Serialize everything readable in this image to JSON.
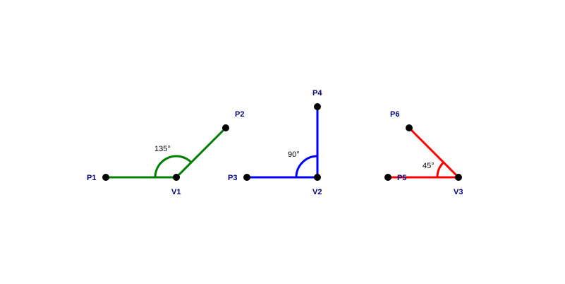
{
  "figures": [
    {
      "id": "fig1",
      "color": "#008000",
      "angle_degrees": 135,
      "angle_label": "135°",
      "vertex_label": "V1",
      "point_a_label": "P1",
      "point_b_label": "P2"
    },
    {
      "id": "fig2",
      "color": "#0000ff",
      "angle_degrees": 90,
      "angle_label": "90°",
      "vertex_label": "V2",
      "point_a_label": "P3",
      "point_b_label": "P4"
    },
    {
      "id": "fig3",
      "color": "#ff0000",
      "angle_degrees": 45,
      "angle_label": "45°",
      "vertex_label": "V3",
      "point_a_label": "P5",
      "point_b_label": "P6"
    }
  ],
  "label_color": "#000080",
  "point_color": "#000000"
}
